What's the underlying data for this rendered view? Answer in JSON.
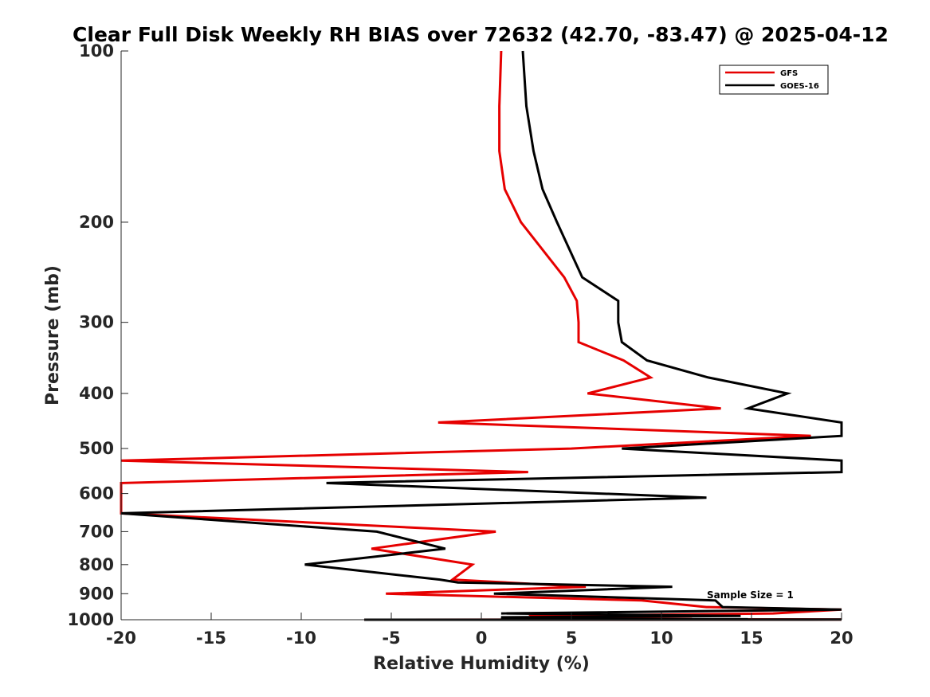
{
  "chart_data": {
    "type": "line",
    "title": "Clear Full Disk Weekly RH BIAS over 72632 (42.70, -83.47) @ 2025-04-12",
    "xlabel": "Relative Humidity (%)",
    "ylabel": "Pressure (mb)",
    "xlim": [
      -20,
      20
    ],
    "ylim": [
      100,
      1000
    ],
    "y_scale": "log",
    "y_reversed": true,
    "x_ticks": [
      "-20",
      "-15",
      "-10",
      "-5",
      "0",
      "5",
      "10",
      "15",
      "20"
    ],
    "y_ticks": [
      "100",
      "200",
      "300",
      "400",
      "500",
      "600",
      "700",
      "800",
      "900",
      "1000"
    ],
    "grid": false,
    "legend_position": "top-right",
    "annotation": "Sample Size = 1",
    "series": [
      {
        "name": "GFS",
        "color": "#e60000",
        "points": [
          [
            1.1,
            100
          ],
          [
            1.0,
            125
          ],
          [
            1.0,
            150
          ],
          [
            1.3,
            175
          ],
          [
            2.2,
            200
          ],
          [
            4.6,
            250
          ],
          [
            5.3,
            275
          ],
          [
            5.4,
            300
          ],
          [
            5.4,
            325
          ],
          [
            7.9,
            350
          ],
          [
            9.4,
            375
          ],
          [
            5.9,
            400
          ],
          [
            13.3,
            425
          ],
          [
            -2.4,
            450
          ],
          [
            18.3,
            475
          ],
          [
            5.0,
            500
          ],
          [
            -20,
            525
          ],
          [
            2.6,
            550
          ],
          [
            -20,
            575
          ],
          [
            -20,
            610
          ],
          [
            -20,
            650
          ],
          [
            0.8,
            700
          ],
          [
            -6.1,
            750
          ],
          [
            -0.5,
            800
          ],
          [
            -1.6,
            850
          ],
          [
            5.8,
            875
          ],
          [
            -5.3,
            900
          ],
          [
            8.9,
            925
          ],
          [
            12.5,
            950
          ],
          [
            20,
            960
          ],
          [
            16.2,
            975
          ],
          [
            2.8,
            985
          ],
          [
            2.9,
            990
          ],
          [
            6.4,
            994
          ],
          [
            9.8,
            996
          ],
          [
            11.7,
            997
          ],
          [
            4.6,
            998
          ],
          [
            20,
            999
          ],
          [
            -6.5,
            1000
          ]
        ]
      },
      {
        "name": "GOES-16",
        "color": "#000000",
        "points": [
          [
            2.3,
            100
          ],
          [
            2.5,
            125
          ],
          [
            2.9,
            150
          ],
          [
            3.4,
            175
          ],
          [
            4.2,
            200
          ],
          [
            5.6,
            250
          ],
          [
            7.6,
            275
          ],
          [
            7.6,
            300
          ],
          [
            7.8,
            325
          ],
          [
            9.2,
            350
          ],
          [
            12.6,
            375
          ],
          [
            17.0,
            400
          ],
          [
            14.8,
            425
          ],
          [
            20,
            450
          ],
          [
            20,
            475
          ],
          [
            7.8,
            500
          ],
          [
            20,
            525
          ],
          [
            20,
            550
          ],
          [
            -8.6,
            575
          ],
          [
            12.5,
            610
          ],
          [
            -20,
            650
          ],
          [
            -5.8,
            700
          ],
          [
            -2.0,
            750
          ],
          [
            -9.8,
            800
          ],
          [
            -2.3,
            850
          ],
          [
            -1.3,
            860
          ],
          [
            10.6,
            875
          ],
          [
            0.7,
            900
          ],
          [
            13.0,
            925
          ],
          [
            13.4,
            950
          ],
          [
            20,
            960
          ],
          [
            1.1,
            975
          ],
          [
            14.4,
            985
          ],
          [
            1.1,
            990
          ],
          [
            1.3,
            994
          ],
          [
            5.3,
            996
          ],
          [
            6.7,
            997
          ],
          [
            14.8,
            998
          ],
          [
            8.5,
            999
          ],
          [
            20,
            999.5
          ],
          [
            -6.5,
            1000
          ]
        ]
      }
    ]
  }
}
